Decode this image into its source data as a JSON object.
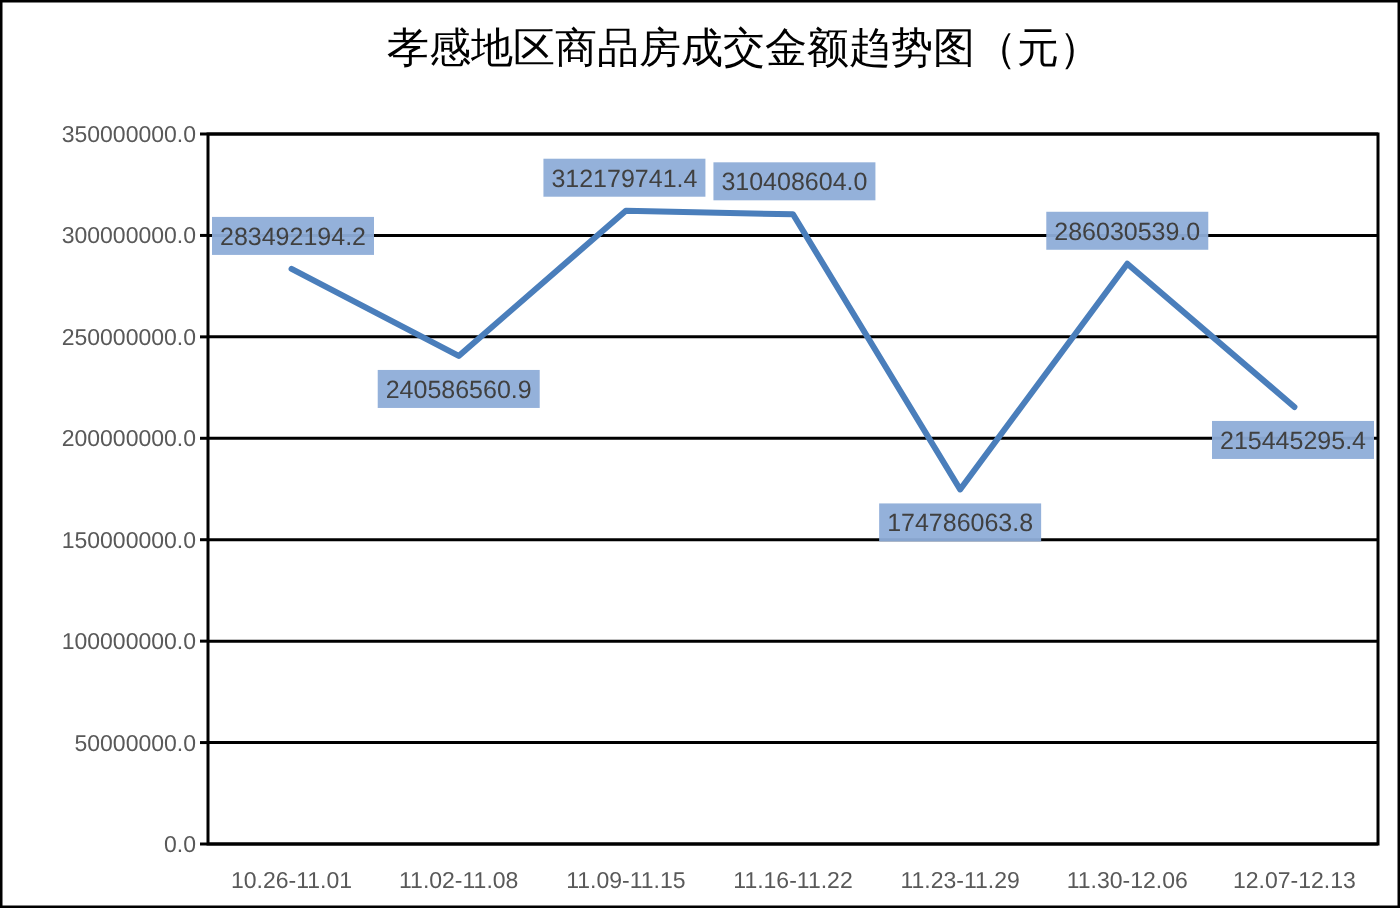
{
  "chart_data": {
    "type": "line",
    "title": "孝感地区商品房成交金额趋势图（元）",
    "categories": [
      "10.26-11.01",
      "11.02-11.08",
      "11.09-11.15",
      "11.16-11.22",
      "11.23-11.29",
      "11.30-12.06",
      "12.07-12.13"
    ],
    "series": [
      {
        "color": "#4a7ebb",
        "values": [
          283492194.2,
          240586560.9,
          312179741.4,
          310408604.0,
          174786063.8,
          286030539.0,
          215445295.4
        ],
        "value_labels": [
          "283492194.2",
          "240586560.9",
          "312179741.4",
          "310408604.0",
          "174786063.8",
          "286030539.0",
          "215445295.4"
        ]
      }
    ],
    "ylim": [
      0,
      350000000
    ],
    "yticks": [
      {
        "value": 0,
        "label": "0.0"
      },
      {
        "value": 50000000,
        "label": "50000000.0"
      },
      {
        "value": 100000000,
        "label": "100000000.0"
      },
      {
        "value": 150000000,
        "label": "150000000.0"
      },
      {
        "value": 200000000,
        "label": "200000000.0"
      },
      {
        "value": 250000000,
        "label": "250000000.0"
      },
      {
        "value": 300000000,
        "label": "300000000.0"
      },
      {
        "value": 350000000,
        "label": "350000000.0"
      }
    ],
    "grid": "y"
  }
}
